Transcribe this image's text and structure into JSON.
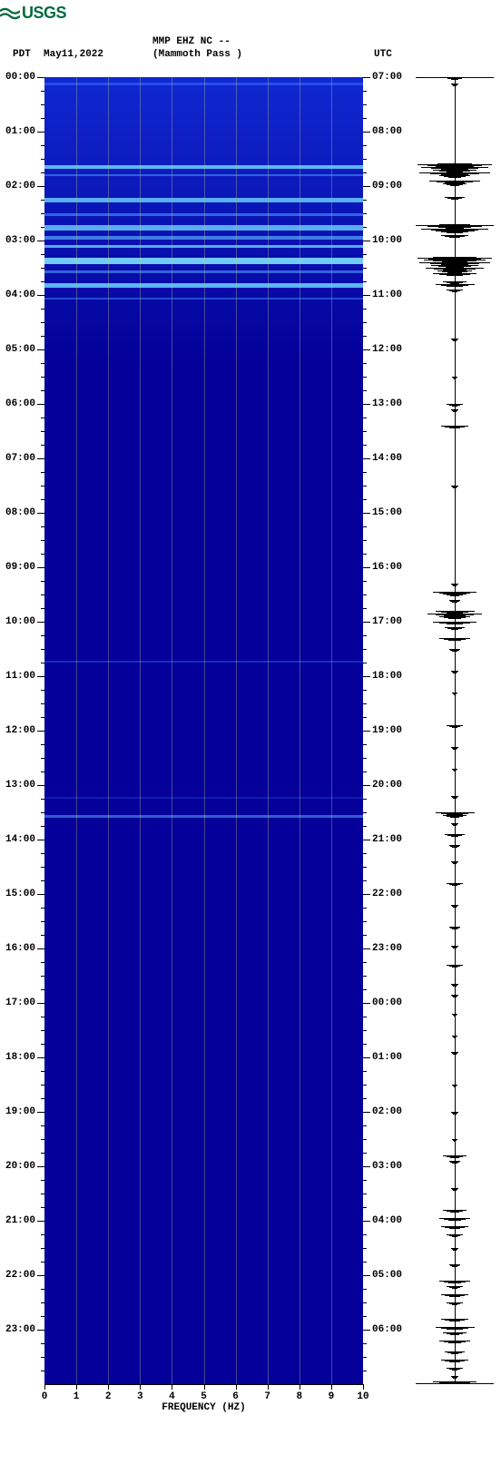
{
  "logo": {
    "text": "USGS",
    "color": "#006b3f"
  },
  "header": {
    "tz_left": "PDT",
    "date": "May11,2022",
    "station": "MMP EHZ NC --",
    "location": "(Mammoth Pass )",
    "tz_right": "UTC"
  },
  "spectrogram": {
    "type": "spectrogram",
    "x_label": "FREQUENCY (HZ)",
    "x_min": 0,
    "x_max": 10,
    "x_tick_step": 1,
    "gridline_color": "#c8c88a",
    "background_color": "#040099",
    "background_grad_top": "#1028d0",
    "events": [
      {
        "t_hr": 0.1,
        "h_hr": 0.05,
        "color": "#3a6cff",
        "opacity": 0.55
      },
      {
        "t_hr": 1.62,
        "h_hr": 0.06,
        "color": "#6bd4ff",
        "opacity": 0.85
      },
      {
        "t_hr": 1.78,
        "h_hr": 0.04,
        "color": "#4a9cff",
        "opacity": 0.55
      },
      {
        "t_hr": 2.22,
        "h_hr": 0.08,
        "color": "#6bd4ff",
        "opacity": 0.8
      },
      {
        "t_hr": 2.5,
        "h_hr": 0.05,
        "color": "#4a9cff",
        "opacity": 0.6
      },
      {
        "t_hr": 2.72,
        "h_hr": 0.1,
        "color": "#6bd4ff",
        "opacity": 0.8
      },
      {
        "t_hr": 2.92,
        "h_hr": 0.06,
        "color": "#5aaaff",
        "opacity": 0.7
      },
      {
        "t_hr": 3.08,
        "h_hr": 0.06,
        "color": "#6bd4ff",
        "opacity": 0.8
      },
      {
        "t_hr": 3.32,
        "h_hr": 0.12,
        "color": "#7ee0ff",
        "opacity": 0.9
      },
      {
        "t_hr": 3.55,
        "h_hr": 0.05,
        "color": "#5aaaff",
        "opacity": 0.55
      },
      {
        "t_hr": 3.78,
        "h_hr": 0.08,
        "color": "#6bd4ff",
        "opacity": 0.85
      },
      {
        "t_hr": 4.05,
        "h_hr": 0.04,
        "color": "#4a9cff",
        "opacity": 0.45
      },
      {
        "t_hr": 10.72,
        "h_hr": 0.03,
        "color": "#3a6cff",
        "opacity": 0.4
      },
      {
        "t_hr": 13.22,
        "h_hr": 0.03,
        "color": "#2a50e0",
        "opacity": 0.35
      },
      {
        "t_hr": 13.55,
        "h_hr": 0.05,
        "color": "#5aaaff",
        "opacity": 0.55
      }
    ]
  },
  "time_axis": {
    "hours_total": 24,
    "left_start": 0,
    "right_start": 7,
    "label_fmt": "HH:00"
  },
  "seismogram": {
    "type": "waveform",
    "color": "#000000",
    "samples": [
      {
        "t_hr": 0.0,
        "amp": 0.25
      },
      {
        "t_hr": 0.12,
        "amp": 0.1
      },
      {
        "t_hr": 1.58,
        "amp": 0.45
      },
      {
        "t_hr": 1.6,
        "amp": 0.95
      },
      {
        "t_hr": 1.62,
        "amp": 0.7
      },
      {
        "t_hr": 1.65,
        "amp": 0.85
      },
      {
        "t_hr": 1.7,
        "amp": 0.55
      },
      {
        "t_hr": 1.75,
        "amp": 0.9
      },
      {
        "t_hr": 1.8,
        "amp": 0.4
      },
      {
        "t_hr": 1.9,
        "amp": 0.65
      },
      {
        "t_hr": 1.95,
        "amp": 0.3
      },
      {
        "t_hr": 2.2,
        "amp": 0.25
      },
      {
        "t_hr": 2.7,
        "amp": 0.4
      },
      {
        "t_hr": 2.72,
        "amp": 1.0
      },
      {
        "t_hr": 2.74,
        "amp": 0.6
      },
      {
        "t_hr": 2.78,
        "amp": 0.85
      },
      {
        "t_hr": 2.82,
        "amp": 0.5
      },
      {
        "t_hr": 2.9,
        "amp": 0.35
      },
      {
        "t_hr": 3.3,
        "amp": 0.55
      },
      {
        "t_hr": 3.32,
        "amp": 0.95
      },
      {
        "t_hr": 3.35,
        "amp": 0.8
      },
      {
        "t_hr": 3.4,
        "amp": 0.9
      },
      {
        "t_hr": 3.45,
        "amp": 0.6
      },
      {
        "t_hr": 3.5,
        "amp": 0.75
      },
      {
        "t_hr": 3.55,
        "amp": 0.45
      },
      {
        "t_hr": 3.6,
        "amp": 0.55
      },
      {
        "t_hr": 3.75,
        "amp": 0.3
      },
      {
        "t_hr": 3.8,
        "amp": 0.5
      },
      {
        "t_hr": 3.9,
        "amp": 0.2
      },
      {
        "t_hr": 4.8,
        "amp": 0.1
      },
      {
        "t_hr": 5.5,
        "amp": 0.08
      },
      {
        "t_hr": 6.0,
        "amp": 0.2
      },
      {
        "t_hr": 6.1,
        "amp": 0.1
      },
      {
        "t_hr": 6.4,
        "amp": 0.35
      },
      {
        "t_hr": 7.5,
        "amp": 0.1
      },
      {
        "t_hr": 9.3,
        "amp": 0.1
      },
      {
        "t_hr": 9.45,
        "amp": 0.55
      },
      {
        "t_hr": 9.48,
        "amp": 0.3
      },
      {
        "t_hr": 9.6,
        "amp": 0.15
      },
      {
        "t_hr": 9.8,
        "amp": 0.5
      },
      {
        "t_hr": 9.85,
        "amp": 0.7
      },
      {
        "t_hr": 9.9,
        "amp": 0.4
      },
      {
        "t_hr": 10.0,
        "amp": 0.55
      },
      {
        "t_hr": 10.1,
        "amp": 0.25
      },
      {
        "t_hr": 10.3,
        "amp": 0.4
      },
      {
        "t_hr": 10.5,
        "amp": 0.15
      },
      {
        "t_hr": 10.9,
        "amp": 0.1
      },
      {
        "t_hr": 11.3,
        "amp": 0.08
      },
      {
        "t_hr": 11.9,
        "amp": 0.2
      },
      {
        "t_hr": 12.3,
        "amp": 0.1
      },
      {
        "t_hr": 12.7,
        "amp": 0.08
      },
      {
        "t_hr": 13.2,
        "amp": 0.1
      },
      {
        "t_hr": 13.5,
        "amp": 0.5
      },
      {
        "t_hr": 13.55,
        "amp": 0.3
      },
      {
        "t_hr": 13.7,
        "amp": 0.1
      },
      {
        "t_hr": 13.9,
        "amp": 0.25
      },
      {
        "t_hr": 14.1,
        "amp": 0.15
      },
      {
        "t_hr": 14.4,
        "amp": 0.1
      },
      {
        "t_hr": 14.8,
        "amp": 0.2
      },
      {
        "t_hr": 15.2,
        "amp": 0.1
      },
      {
        "t_hr": 15.6,
        "amp": 0.15
      },
      {
        "t_hr": 15.95,
        "amp": 0.1
      },
      {
        "t_hr": 16.3,
        "amp": 0.2
      },
      {
        "t_hr": 16.65,
        "amp": 0.1
      },
      {
        "t_hr": 16.85,
        "amp": 0.1
      },
      {
        "t_hr": 17.2,
        "amp": 0.08
      },
      {
        "t_hr": 17.6,
        "amp": 0.08
      },
      {
        "t_hr": 17.9,
        "amp": 0.1
      },
      {
        "t_hr": 18.5,
        "amp": 0.08
      },
      {
        "t_hr": 19.0,
        "amp": 0.1
      },
      {
        "t_hr": 19.5,
        "amp": 0.08
      },
      {
        "t_hr": 19.8,
        "amp": 0.3
      },
      {
        "t_hr": 19.9,
        "amp": 0.15
      },
      {
        "t_hr": 20.4,
        "amp": 0.1
      },
      {
        "t_hr": 20.8,
        "amp": 0.3
      },
      {
        "t_hr": 20.95,
        "amp": 0.4
      },
      {
        "t_hr": 21.1,
        "amp": 0.35
      },
      {
        "t_hr": 21.25,
        "amp": 0.2
      },
      {
        "t_hr": 21.5,
        "amp": 0.1
      },
      {
        "t_hr": 21.8,
        "amp": 0.15
      },
      {
        "t_hr": 22.1,
        "amp": 0.4
      },
      {
        "t_hr": 22.2,
        "amp": 0.2
      },
      {
        "t_hr": 22.35,
        "amp": 0.35
      },
      {
        "t_hr": 22.5,
        "amp": 0.2
      },
      {
        "t_hr": 22.8,
        "amp": 0.35
      },
      {
        "t_hr": 22.95,
        "amp": 0.5
      },
      {
        "t_hr": 23.05,
        "amp": 0.3
      },
      {
        "t_hr": 23.2,
        "amp": 0.4
      },
      {
        "t_hr": 23.4,
        "amp": 0.25
      },
      {
        "t_hr": 23.55,
        "amp": 0.35
      },
      {
        "t_hr": 23.7,
        "amp": 0.2
      },
      {
        "t_hr": 23.85,
        "amp": 0.1
      },
      {
        "t_hr": 23.95,
        "amp": 0.55
      }
    ]
  }
}
